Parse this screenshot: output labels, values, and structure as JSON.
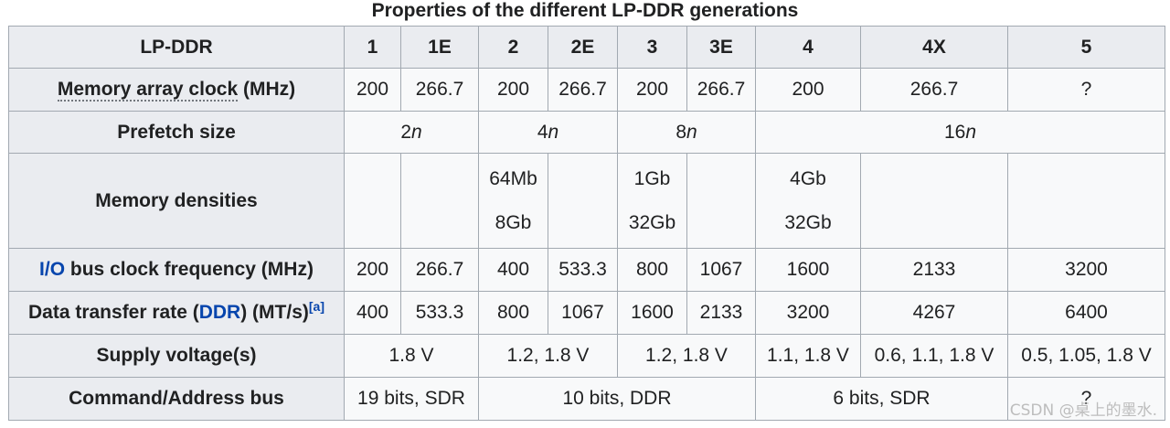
{
  "caption": "Properties of the different LP-DDR generations",
  "header": {
    "first": "LP-DDR",
    "generations": [
      "1",
      "1E",
      "2",
      "2E",
      "3",
      "3E",
      "4",
      "4X",
      "5"
    ]
  },
  "rows": {
    "memory_array_clock": {
      "label_link": "Memory array clock",
      "label_suffix": " (MHz)",
      "values": [
        "200",
        "266.7",
        "200",
        "266.7",
        "200",
        "266.7",
        "200",
        "266.7",
        "?"
      ]
    },
    "prefetch": {
      "label": "Prefetch size",
      "groups": [
        {
          "num": "2",
          "var": "n"
        },
        {
          "num": "4",
          "var": "n"
        },
        {
          "num": "8",
          "var": "n"
        },
        {
          "num": "16",
          "var": "n"
        }
      ]
    },
    "memory_densities": {
      "label": "Memory densities",
      "cells": [
        [],
        [],
        [
          "64Mb",
          "8Gb"
        ],
        [],
        [
          "1Gb",
          "32Gb"
        ],
        [],
        [
          "4Gb",
          "32Gb"
        ],
        [],
        []
      ]
    },
    "io_bus_clock": {
      "label_link": "I/O",
      "label_suffix": " bus clock frequency (MHz)",
      "values": [
        "200",
        "266.7",
        "400",
        "533.3",
        "800",
        "1067",
        "1600",
        "2133",
        "3200"
      ]
    },
    "data_transfer_rate": {
      "label_prefix": "Data transfer rate (",
      "label_link": "DDR",
      "label_suffix": ") (MT/s)",
      "note": "[a]",
      "values": [
        "400",
        "533.3",
        "800",
        "1067",
        "1600",
        "2133",
        "3200",
        "4267",
        "6400"
      ]
    },
    "supply_voltage": {
      "label": "Supply voltage(s)",
      "values": [
        "1.8 V",
        "1.2, 1.8 V",
        "1.2, 1.8 V",
        "1.1, 1.8 V",
        "0.6, 1.1, 1.8 V",
        "0.5, 1.05, 1.8 V"
      ]
    },
    "command_address_bus": {
      "label": "Command/Address bus",
      "values": [
        "19 bits, SDR",
        "10 bits, DDR",
        "6 bits, SDR",
        "?"
      ]
    }
  },
  "watermark": "CSDN @桌上的墨水."
}
